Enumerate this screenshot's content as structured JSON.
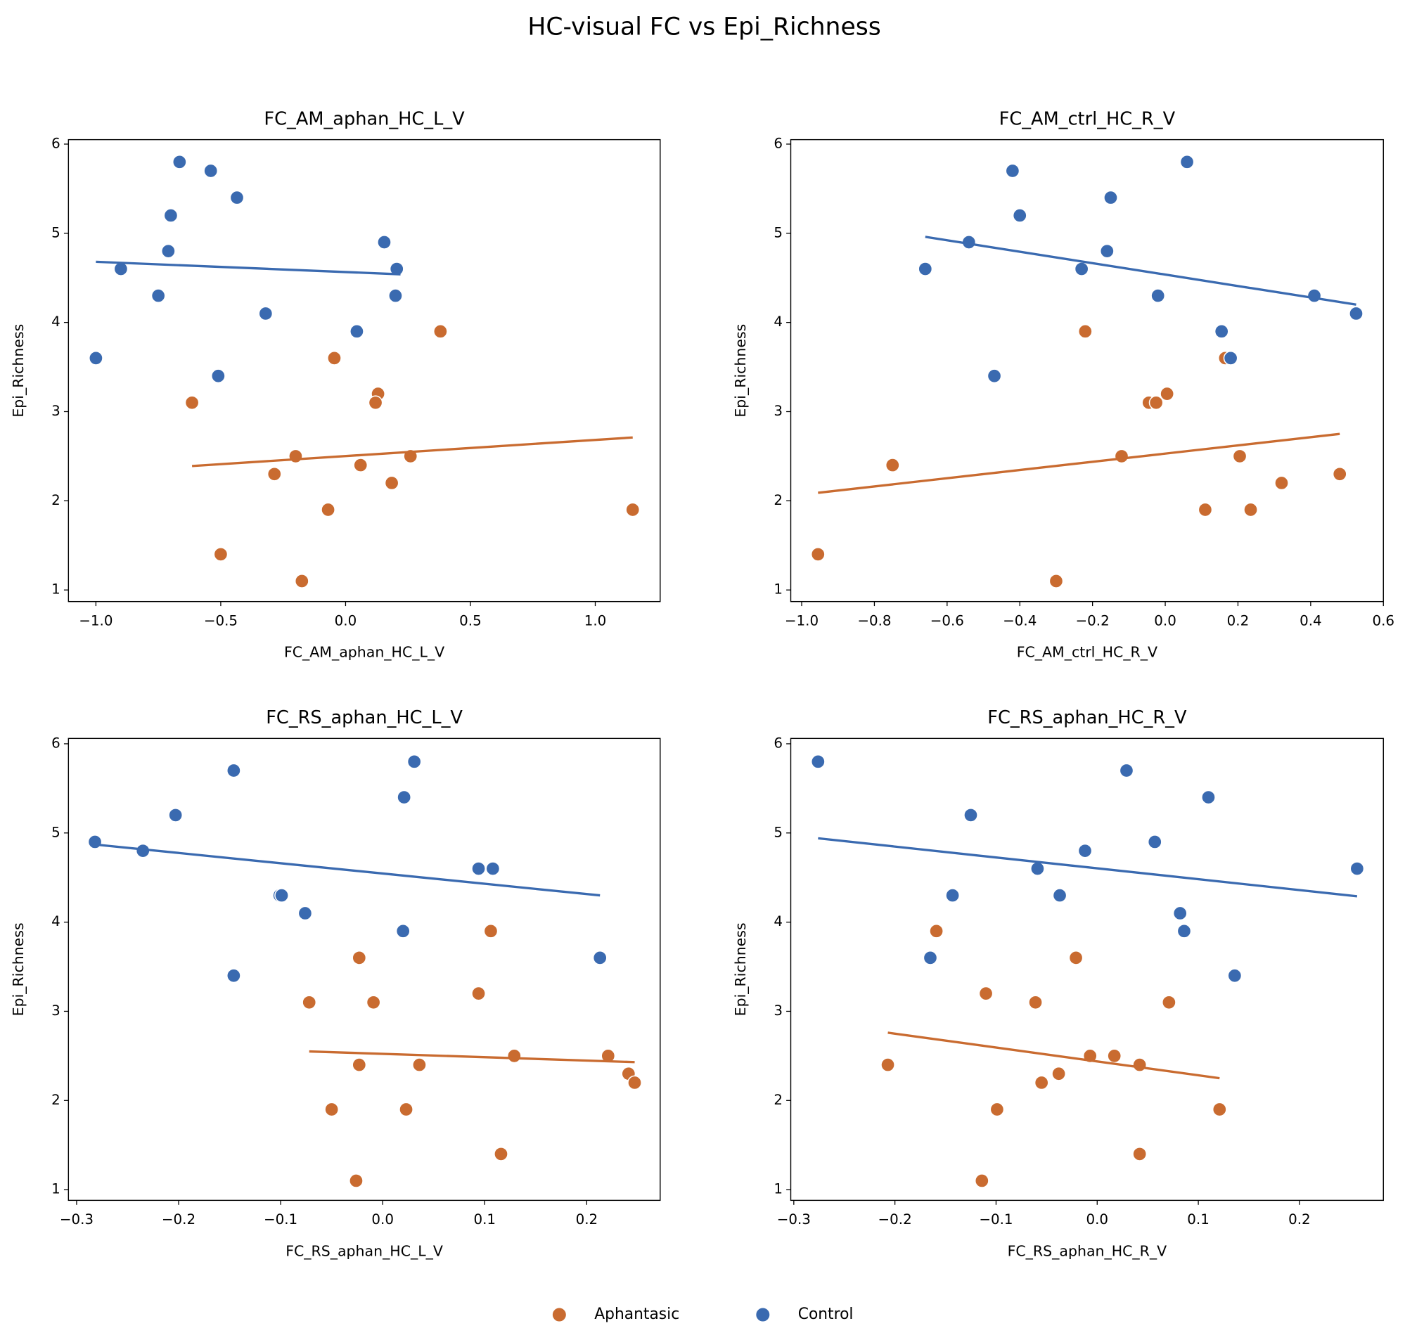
{
  "title": "HC-visual FC vs Epi_Richness",
  "chart_data": [
    {
      "type": "scatter",
      "title": "FC_AM_aphan_HC_L_V",
      "x_label": "FC_AM_aphan_HC_L_V",
      "y_label": "Epi_Richness",
      "xlim": [
        -1.11,
        1.26
      ],
      "ylim": [
        0.87,
        6.05
      ],
      "xticks": [
        {
          "value": -1.0,
          "label": "−1.0"
        },
        {
          "value": -0.5,
          "label": "−0.5"
        },
        {
          "value": 0.0,
          "label": "0.0"
        },
        {
          "value": 0.5,
          "label": "0.5"
        },
        {
          "value": 1.0,
          "label": "1.0"
        }
      ],
      "yticks": [
        1,
        2,
        3,
        4,
        5,
        6
      ],
      "series": [
        {
          "name": "Aphantasic",
          "color": "#c96b30",
          "x": [
            0.38,
            -0.045,
            -0.615,
            0.13,
            0.12,
            -0.2,
            0.26,
            -0.285,
            0.06,
            0.185,
            -0.07,
            1.15,
            -0.5,
            -0.175
          ],
          "y": [
            3.9,
            3.6,
            3.1,
            3.2,
            3.1,
            2.5,
            2.5,
            2.3,
            2.4,
            2.2,
            1.9,
            1.9,
            1.4,
            1.1
          ],
          "fit": {
            "x": [
              -0.615,
              1.15
            ],
            "y": [
              2.39,
              2.71
            ]
          }
        },
        {
          "name": "Control",
          "color": "#3a6ab0",
          "x": [
            -0.665,
            -0.54,
            -0.435,
            -0.7,
            -0.71,
            0.155,
            -0.9,
            0.205,
            -0.75,
            0.2,
            -0.32,
            0.045,
            -1.0,
            -0.51
          ],
          "y": [
            5.8,
            5.7,
            5.4,
            5.2,
            4.8,
            4.9,
            4.6,
            4.6,
            4.3,
            4.3,
            4.1,
            3.9,
            3.6,
            3.4
          ],
          "fit": {
            "x": [
              -1.0,
              0.22
            ],
            "y": [
              4.68,
              4.54
            ]
          }
        }
      ]
    },
    {
      "type": "scatter",
      "title": "FC_AM_ctrl_HC_R_V",
      "x_label": "FC_AM_ctrl_HC_R_V",
      "y_label": "Epi_Richness",
      "xlim": [
        -1.03,
        0.6
      ],
      "ylim": [
        0.87,
        6.05
      ],
      "xticks": [
        {
          "value": -1.0,
          "label": "−1.0"
        },
        {
          "value": -0.8,
          "label": "−0.8"
        },
        {
          "value": -0.6,
          "label": "−0.6"
        },
        {
          "value": -0.4,
          "label": "−0.4"
        },
        {
          "value": -0.2,
          "label": "−0.2"
        },
        {
          "value": 0.0,
          "label": "0.0"
        },
        {
          "value": 0.2,
          "label": "0.2"
        },
        {
          "value": 0.4,
          "label": "0.4"
        },
        {
          "value": 0.6,
          "label": "0.6"
        }
      ],
      "yticks": [
        1,
        2,
        3,
        4,
        5,
        6
      ],
      "series": [
        {
          "name": "Aphantasic",
          "color": "#c96b30",
          "x": [
            -0.955,
            -0.75,
            -0.3,
            -0.22,
            -0.12,
            -0.045,
            -0.025,
            0.005,
            0.11,
            0.165,
            0.205,
            0.235,
            0.32,
            0.48
          ],
          "y": [
            1.4,
            2.4,
            1.1,
            3.9,
            2.5,
            3.1,
            3.1,
            3.2,
            1.9,
            3.6,
            2.5,
            1.9,
            2.2,
            2.3
          ],
          "fit": {
            "x": [
              -0.955,
              0.48
            ],
            "y": [
              2.09,
              2.75
            ]
          }
        },
        {
          "name": "Control",
          "color": "#3a6ab0",
          "x": [
            -0.66,
            -0.54,
            -0.42,
            -0.4,
            -0.47,
            -0.23,
            -0.16,
            -0.15,
            -0.02,
            0.06,
            0.155,
            0.18,
            0.41,
            0.525
          ],
          "y": [
            4.6,
            4.9,
            5.7,
            5.2,
            3.4,
            4.6,
            4.8,
            5.4,
            4.3,
            5.8,
            3.9,
            3.6,
            4.3,
            4.1
          ],
          "fit": {
            "x": [
              -0.66,
              0.525
            ],
            "y": [
              4.96,
              4.2
            ]
          }
        }
      ]
    },
    {
      "type": "scatter",
      "title": "FC_RS_aphan_HC_L_V",
      "x_label": "FC_RS_aphan_HC_L_V",
      "y_label": "Epi_Richness",
      "xlim": [
        -0.308,
        0.272
      ],
      "ylim": [
        0.88,
        6.06
      ],
      "xticks": [
        {
          "value": -0.3,
          "label": "−0.3"
        },
        {
          "value": -0.2,
          "label": "−0.2"
        },
        {
          "value": -0.1,
          "label": "−0.1"
        },
        {
          "value": 0.0,
          "label": "0.0"
        },
        {
          "value": 0.1,
          "label": "0.1"
        },
        {
          "value": 0.2,
          "label": "0.2"
        }
      ],
      "yticks": [
        1,
        2,
        3,
        4,
        5,
        6
      ],
      "series": [
        {
          "name": "Aphantasic",
          "color": "#c96b30",
          "x": [
            -0.072,
            -0.023,
            -0.023,
            -0.05,
            -0.026,
            -0.009,
            0.023,
            0.036,
            0.094,
            0.106,
            0.116,
            0.129,
            0.221,
            0.241,
            0.247
          ],
          "y": [
            3.1,
            3.6,
            2.4,
            1.9,
            1.1,
            3.1,
            1.9,
            2.4,
            3.2,
            3.9,
            1.4,
            2.5,
            2.5,
            2.3,
            2.2
          ],
          "fit": {
            "x": [
              -0.072,
              0.247
            ],
            "y": [
              2.55,
              2.43
            ]
          }
        },
        {
          "name": "Control",
          "color": "#3a6ab0",
          "x": [
            -0.282,
            -0.235,
            -0.203,
            -0.146,
            -0.146,
            -0.101,
            -0.099,
            -0.076,
            0.021,
            0.031,
            0.02,
            0.094,
            0.108,
            0.213
          ],
          "y": [
            4.9,
            4.8,
            5.2,
            5.7,
            3.4,
            4.3,
            4.3,
            4.1,
            5.4,
            5.8,
            3.9,
            4.6,
            4.6,
            3.6
          ],
          "fit": {
            "x": [
              -0.282,
              0.213
            ],
            "y": [
              4.87,
              4.3
            ]
          }
        }
      ]
    },
    {
      "type": "scatter",
      "title": "FC_RS_aphan_HC_R_V",
      "x_label": "FC_RS_aphan_HC_R_V",
      "y_label": "Epi_Richness",
      "xlim": [
        -0.303,
        0.283
      ],
      "ylim": [
        0.88,
        6.06
      ],
      "xticks": [
        {
          "value": -0.3,
          "label": "−0.3"
        },
        {
          "value": -0.2,
          "label": "−0.2"
        },
        {
          "value": -0.1,
          "label": "−0.1"
        },
        {
          "value": 0.0,
          "label": "0.0"
        },
        {
          "value": 0.1,
          "label": "0.1"
        },
        {
          "value": 0.2,
          "label": "0.2"
        }
      ],
      "yticks": [
        1,
        2,
        3,
        4,
        5,
        6
      ],
      "series": [
        {
          "name": "Aphantasic",
          "color": "#c96b30",
          "x": [
            -0.207,
            -0.159,
            -0.11,
            -0.114,
            -0.099,
            -0.061,
            -0.055,
            -0.038,
            -0.021,
            -0.007,
            0.017,
            0.042,
            0.042,
            0.071,
            0.121
          ],
          "y": [
            2.4,
            3.9,
            3.2,
            1.1,
            1.9,
            3.1,
            2.2,
            2.3,
            3.6,
            2.5,
            2.5,
            2.4,
            1.4,
            3.1,
            1.9
          ],
          "fit": {
            "x": [
              -0.207,
              0.121
            ],
            "y": [
              2.76,
              2.25
            ]
          }
        },
        {
          "name": "Control",
          "color": "#3a6ab0",
          "x": [
            -0.276,
            -0.125,
            -0.143,
            -0.165,
            -0.059,
            -0.037,
            -0.012,
            0.029,
            0.057,
            0.082,
            0.086,
            0.11,
            0.136,
            0.257
          ],
          "y": [
            5.8,
            5.2,
            4.3,
            3.6,
            4.6,
            4.3,
            4.8,
            5.7,
            4.9,
            4.1,
            3.9,
            5.4,
            3.4,
            4.6
          ],
          "fit": {
            "x": [
              -0.276,
              0.257
            ],
            "y": [
              4.94,
              4.29
            ]
          }
        }
      ]
    }
  ]
}
